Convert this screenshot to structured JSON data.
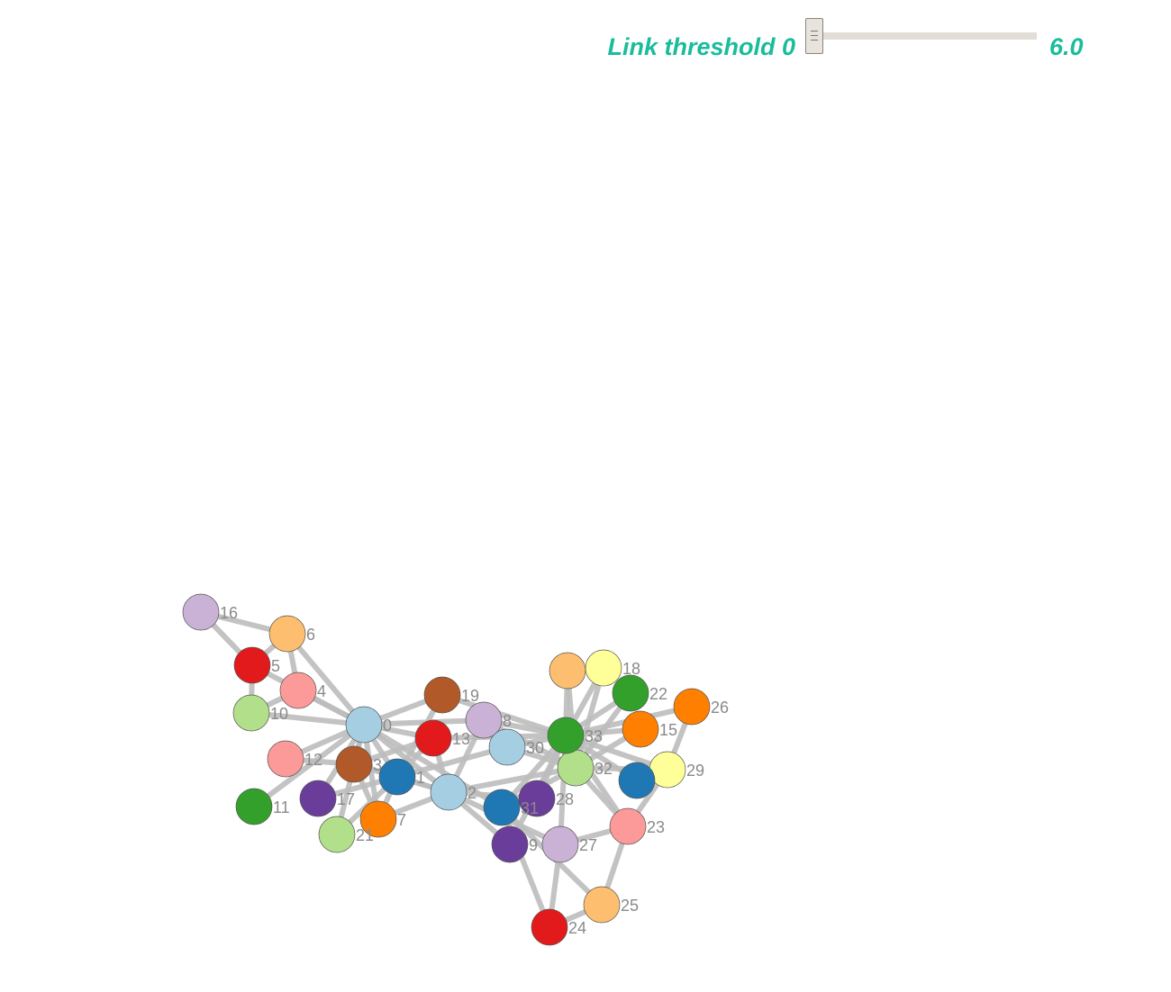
{
  "controls": {
    "threshold_label": "Link threshold 0",
    "threshold_value": "6.0",
    "threshold_level": 0,
    "accent_color": "#1abc9c",
    "icon": "grip-lines-icon"
  },
  "graph": {
    "link_color": "#bdbdbd",
    "nodes": [
      {
        "id": 0,
        "label": "0",
        "color": "#a6cee3"
      },
      {
        "id": 1,
        "label": "1",
        "color": "#1f78b4"
      },
      {
        "id": 2,
        "label": "2",
        "color": "#a6cee3"
      },
      {
        "id": 3,
        "label": "3",
        "color": "#b15928"
      },
      {
        "id": 4,
        "label": "4",
        "color": "#fb9a99"
      },
      {
        "id": 5,
        "label": "5",
        "color": "#e31a1c"
      },
      {
        "id": 6,
        "label": "6",
        "color": "#fdbf6f"
      },
      {
        "id": 7,
        "label": "7",
        "color": "#ff7f00"
      },
      {
        "id": 8,
        "label": "8",
        "color": "#cab2d6"
      },
      {
        "id": 9,
        "label": "9",
        "color": "#6a3d9a"
      },
      {
        "id": 10,
        "label": "10",
        "color": "#b2df8a"
      },
      {
        "id": 11,
        "label": "11",
        "color": "#33a02c"
      },
      {
        "id": 12,
        "label": "12",
        "color": "#fb9a99"
      },
      {
        "id": 13,
        "label": "13",
        "color": "#e31a1c"
      },
      {
        "id": 14,
        "label": "",
        "color": "#fdbf6f"
      },
      {
        "id": 15,
        "label": "15",
        "color": "#ff7f00"
      },
      {
        "id": 16,
        "label": "16",
        "color": "#cab2d6"
      },
      {
        "id": 17,
        "label": "17",
        "color": "#6a3d9a"
      },
      {
        "id": 18,
        "label": "18",
        "color": "#ffff99"
      },
      {
        "id": 19,
        "label": "19",
        "color": "#b15928"
      },
      {
        "id": 21,
        "label": "21",
        "color": "#b2df8a"
      },
      {
        "id": 22,
        "label": "22",
        "color": "#33a02c"
      },
      {
        "id": 23,
        "label": "23",
        "color": "#fb9a99"
      },
      {
        "id": 24,
        "label": "24",
        "color": "#e31a1c"
      },
      {
        "id": 25,
        "label": "25",
        "color": "#fdbf6f"
      },
      {
        "id": 26,
        "label": "26",
        "color": "#ff7f00"
      },
      {
        "id": 27,
        "label": "27",
        "color": "#cab2d6"
      },
      {
        "id": 28,
        "label": "28",
        "color": "#6a3d9a"
      },
      {
        "id": 29,
        "label": "29",
        "color": "#ffff99"
      },
      {
        "id": 30,
        "label": "30",
        "color": "#a6cee3"
      },
      {
        "id": 31,
        "label": "31",
        "color": "#1f78b4"
      },
      {
        "id": 32,
        "label": "32",
        "color": "#b2df8a"
      },
      {
        "id": 33,
        "label": "33",
        "color": "#33a02c"
      },
      {
        "id": 35,
        "label": "",
        "color": "#1f78b4"
      }
    ],
    "links": [
      [
        0,
        1
      ],
      [
        0,
        2
      ],
      [
        0,
        3
      ],
      [
        0,
        4
      ],
      [
        0,
        5
      ],
      [
        0,
        6
      ],
      [
        0,
        7
      ],
      [
        0,
        8
      ],
      [
        0,
        10
      ],
      [
        0,
        11
      ],
      [
        0,
        12
      ],
      [
        0,
        13
      ],
      [
        0,
        17
      ],
      [
        0,
        19
      ],
      [
        0,
        21
      ],
      [
        0,
        31
      ],
      [
        1,
        2
      ],
      [
        1,
        3
      ],
      [
        1,
        7
      ],
      [
        1,
        13
      ],
      [
        1,
        17
      ],
      [
        1,
        19
      ],
      [
        1,
        21
      ],
      [
        1,
        30
      ],
      [
        2,
        3
      ],
      [
        2,
        7
      ],
      [
        2,
        8
      ],
      [
        2,
        9
      ],
      [
        2,
        13
      ],
      [
        2,
        27
      ],
      [
        2,
        28
      ],
      [
        2,
        32
      ],
      [
        3,
        7
      ],
      [
        3,
        12
      ],
      [
        3,
        13
      ],
      [
        4,
        6
      ],
      [
        4,
        10
      ],
      [
        5,
        6
      ],
      [
        5,
        10
      ],
      [
        5,
        16
      ],
      [
        6,
        16
      ],
      [
        8,
        30
      ],
      [
        8,
        32
      ],
      [
        8,
        33
      ],
      [
        9,
        33
      ],
      [
        13,
        33
      ],
      [
        14,
        32
      ],
      [
        14,
        33
      ],
      [
        15,
        32
      ],
      [
        15,
        33
      ],
      [
        18,
        32
      ],
      [
        18,
        33
      ],
      [
        19,
        33
      ],
      [
        22,
        32
      ],
      [
        22,
        33
      ],
      [
        23,
        25
      ],
      [
        23,
        27
      ],
      [
        23,
        29
      ],
      [
        23,
        32
      ],
      [
        23,
        33
      ],
      [
        24,
        25
      ],
      [
        24,
        27
      ],
      [
        24,
        31
      ],
      [
        25,
        31
      ],
      [
        26,
        29
      ],
      [
        26,
        33
      ],
      [
        27,
        33
      ],
      [
        28,
        31
      ],
      [
        28,
        33
      ],
      [
        29,
        32
      ],
      [
        29,
        33
      ],
      [
        30,
        32
      ],
      [
        30,
        33
      ],
      [
        31,
        32
      ],
      [
        31,
        33
      ],
      [
        32,
        33
      ],
      [
        35,
        33
      ],
      [
        35,
        29
      ]
    ]
  }
}
